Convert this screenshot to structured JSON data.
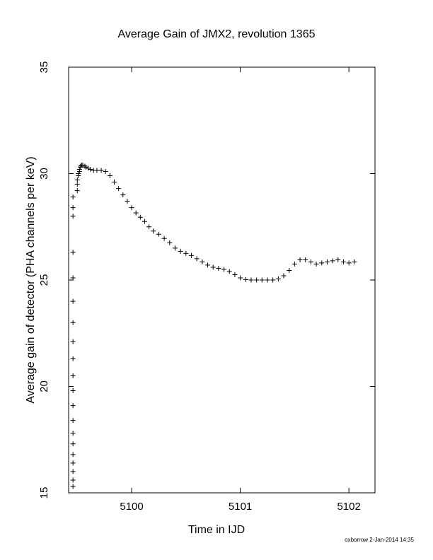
{
  "chart_data": {
    "type": "scatter",
    "title": "Average Gain of JMX2, revolution 1365",
    "xlabel": "Time in IJD",
    "ylabel": "Average gain of detector (PHA channels per keV)",
    "xlim": [
      5099.42,
      5102.24
    ],
    "ylim": [
      15,
      35
    ],
    "x_ticks": [
      5100,
      5101,
      5102
    ],
    "x_tick_labels": [
      "5100",
      "5101",
      "5102"
    ],
    "y_ticks": [
      15,
      20,
      25,
      30,
      35
    ],
    "y_tick_labels": [
      "15",
      "20",
      "25",
      "30",
      "35"
    ],
    "grid": false,
    "marker": "+",
    "series": [
      {
        "x": [
          5099.46,
          5099.46,
          5099.46,
          5099.46,
          5099.46,
          5099.46,
          5099.46,
          5099.46,
          5099.46,
          5099.46,
          5099.46,
          5099.46,
          5099.46,
          5099.46,
          5099.46,
          5099.46,
          5099.46,
          5099.46,
          5099.46,
          5099.46,
          5099.5,
          5099.5,
          5099.5,
          5099.51,
          5099.51,
          5099.52,
          5099.52,
          5099.53,
          5099.53,
          5099.54,
          5099.55,
          5099.57,
          5099.58,
          5099.6,
          5099.62,
          5099.65,
          5099.68,
          5099.72,
          5099.76,
          5099.8,
          5099.84,
          5099.88,
          5099.92,
          5099.96,
          5100.0,
          5100.04,
          5100.08,
          5100.12,
          5100.16,
          5100.2,
          5100.25,
          5100.3,
          5100.35,
          5100.4,
          5100.45,
          5100.5,
          5100.55,
          5100.6,
          5100.65,
          5100.7,
          5100.75,
          5100.8,
          5100.85,
          5100.9,
          5100.95,
          5101.0,
          5101.05,
          5101.1,
          5101.15,
          5101.2,
          5101.25,
          5101.3,
          5101.35,
          5101.4,
          5101.45,
          5101.5,
          5101.55,
          5101.6,
          5101.65,
          5101.7,
          5101.75,
          5101.8,
          5101.85,
          5101.9,
          5101.95,
          5102.0,
          5102.05
        ],
        "y": [
          15.3,
          15.6,
          16.0,
          16.4,
          16.8,
          17.3,
          17.8,
          18.4,
          19.1,
          19.8,
          20.5,
          21.3,
          22.1,
          23.0,
          24.0,
          25.1,
          26.3,
          28.0,
          28.4,
          28.9,
          29.2,
          29.5,
          29.7,
          29.9,
          30.0,
          30.1,
          30.2,
          30.3,
          30.35,
          30.4,
          30.4,
          30.35,
          30.3,
          30.25,
          30.2,
          30.15,
          30.15,
          30.15,
          30.1,
          29.9,
          29.6,
          29.3,
          29.0,
          28.7,
          28.4,
          28.15,
          27.95,
          27.75,
          27.5,
          27.3,
          27.15,
          26.95,
          26.75,
          26.5,
          26.35,
          26.25,
          26.15,
          26.0,
          25.85,
          25.7,
          25.6,
          25.55,
          25.5,
          25.4,
          25.25,
          25.1,
          25.02,
          25.0,
          25.0,
          25.0,
          25.0,
          25.0,
          25.05,
          25.2,
          25.45,
          25.75,
          25.95,
          25.95,
          25.85,
          25.75,
          25.8,
          25.85,
          25.9,
          25.95,
          25.85,
          25.8,
          25.85
        ]
      }
    ]
  },
  "footer": {
    "stamp": "oxborrow  2-Jan-2014 14:35"
  }
}
